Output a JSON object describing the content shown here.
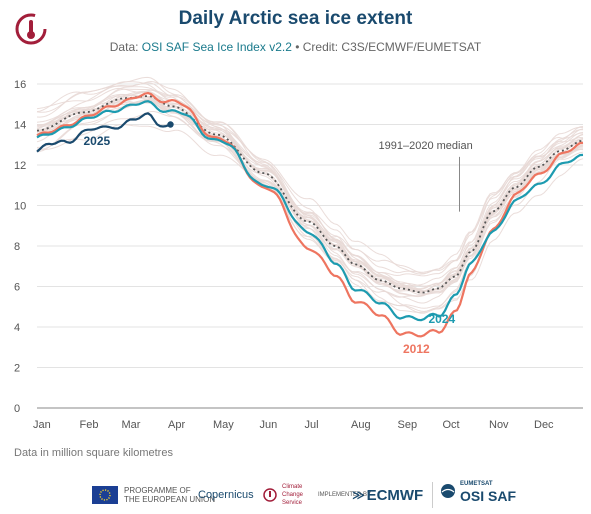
{
  "header": {
    "title": "Daily Arctic sea ice extent",
    "subtitle_prefix": "Data:",
    "subtitle_source": "OSI SAF Sea Ice Index v2.2",
    "subtitle_credit": "• Credit: C3S/ECMWF/EUMETSAT"
  },
  "footnote": "Data in million square kilometres",
  "footer": {
    "eu_label_1": "PROGRAMME OF",
    "eu_label_2": "THE EUROPEAN UNION",
    "copernicus": "Copernicus",
    "c3s_label": "Climate Change Service",
    "implemented_by": "IMPLEMENTED BY",
    "ecmwf": "ECMWF",
    "eumetsat": "EUMETSAT",
    "osisaf": "OSI SAF"
  },
  "colors": {
    "title": "#1a4a6e",
    "y2025": "#1a4a6e",
    "y2024": "#1d9bb0",
    "y2012": "#ee7560",
    "median": "#555555",
    "history": "#e8d9d6"
  },
  "chart_data": {
    "type": "line",
    "title": "Daily Arctic sea ice extent",
    "ylabel": "",
    "xlabel": "",
    "ylim": [
      0,
      16
    ],
    "yticks": [
      0,
      2,
      4,
      6,
      8,
      10,
      12,
      14,
      16
    ],
    "months": [
      "Jan",
      "Feb",
      "Mar",
      "Apr",
      "May",
      "Jun",
      "Jul",
      "Aug",
      "Sep",
      "Oct",
      "Nov",
      "Dec"
    ],
    "grid": true,
    "x_unit": "day of year",
    "series": [
      {
        "name": "1991–2020 median",
        "style": "dotted",
        "x": [
          1,
          32,
          60,
          75,
          91,
          121,
          152,
          182,
          200,
          213,
          230,
          244,
          258,
          268,
          280,
          290,
          305,
          320,
          335,
          350,
          365
        ],
        "values": [
          13.7,
          14.6,
          15.3,
          15.4,
          14.9,
          13.5,
          11.6,
          9.2,
          8.0,
          7.1,
          6.3,
          5.9,
          5.7,
          5.9,
          6.5,
          7.7,
          9.7,
          10.9,
          11.9,
          12.7,
          13.2
        ]
      },
      {
        "name": "2012",
        "x": [
          1,
          32,
          60,
          75,
          91,
          121,
          152,
          182,
          200,
          213,
          230,
          244,
          258,
          268,
          280,
          290,
          305,
          320,
          335,
          350,
          365
        ],
        "values": [
          13.4,
          14.3,
          15.2,
          15.4,
          15.2,
          13.4,
          11.0,
          8.0,
          6.5,
          5.4,
          4.5,
          3.8,
          3.5,
          3.8,
          4.8,
          6.5,
          8.9,
          10.4,
          11.6,
          12.4,
          13.1
        ]
      },
      {
        "name": "2024",
        "x": [
          1,
          32,
          60,
          75,
          91,
          121,
          152,
          182,
          200,
          213,
          230,
          244,
          258,
          268,
          280,
          290,
          305,
          320,
          335,
          350,
          365
        ],
        "values": [
          13.3,
          14.2,
          14.9,
          15.0,
          14.7,
          13.3,
          11.1,
          8.8,
          7.1,
          6.0,
          5.1,
          4.6,
          4.3,
          4.6,
          5.6,
          7.0,
          8.8,
          10.1,
          11.1,
          11.9,
          12.5
        ]
      },
      {
        "name": "2025",
        "x": [
          1,
          10,
          20,
          32,
          45,
          55,
          65,
          75,
          82,
          90
        ],
        "values": [
          12.6,
          13.0,
          13.2,
          13.6,
          13.8,
          14.0,
          14.2,
          14.4,
          14.1,
          14.0
        ]
      }
    ],
    "annotations": [
      {
        "text": "2025",
        "series": "2025"
      },
      {
        "text": "2024",
        "series": "2024"
      },
      {
        "text": "2012",
        "series": "2012"
      },
      {
        "text": "1991–2020 median",
        "series": "1991–2020 median"
      }
    ]
  }
}
